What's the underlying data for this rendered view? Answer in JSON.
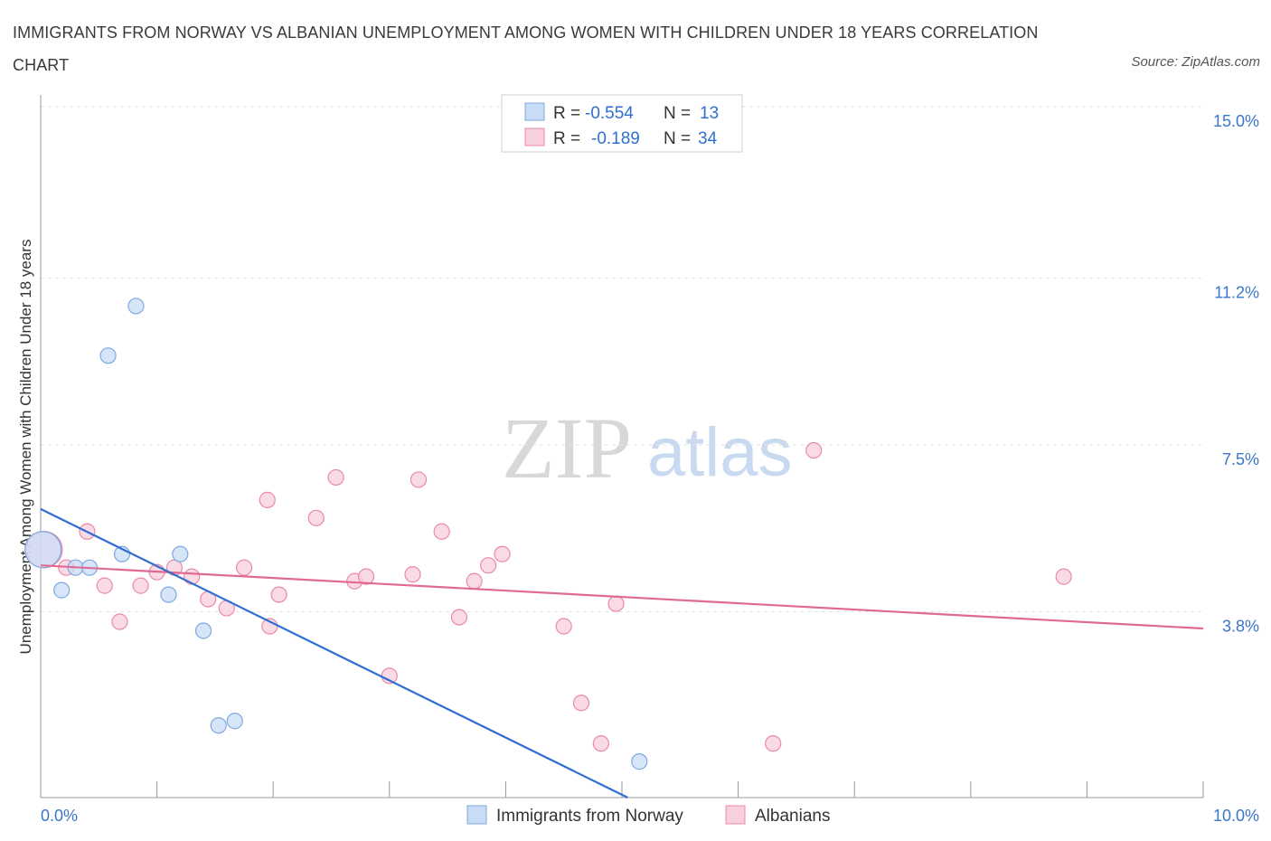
{
  "title": "IMMIGRANTS FROM NORWAY VS ALBANIAN UNEMPLOYMENT AMONG WOMEN WITH CHILDREN UNDER 18 YEARS CORRELATION CHART",
  "source": "Source: ZipAtlas.com",
  "watermark": {
    "zip": "ZIP",
    "atlas": "atlas"
  },
  "colors": {
    "blue_fill": "#c9dcf5",
    "blue_stroke": "#7ea8e0",
    "blue_line": "#2f6fd1",
    "pink_fill": "#f8cfdc",
    "pink_stroke": "#e98aab",
    "pink_line": "#e06a93",
    "grid": "#dddddd",
    "axis_text": "#3b76c8"
  },
  "legend": {
    "r_label": "R =",
    "n_label": "N =",
    "rows": [
      {
        "series": "Immigrants from Norway",
        "r": "-0.554",
        "n": "13"
      },
      {
        "series": "Albanians",
        "r": "-0.189",
        "n": "34"
      }
    ]
  },
  "chart_data": {
    "type": "scatter",
    "title": "IMMIGRANTS FROM NORWAY VS ALBANIAN UNEMPLOYMENT AMONG WOMEN WITH CHILDREN UNDER 18 YEARS CORRELATION CHART",
    "xlabel": "",
    "ylabel": "Unemployment Among Women with Children Under 18 years",
    "xlim": [
      0,
      10
    ],
    "ylim": [
      0,
      15
    ],
    "x_tick_labels": [
      {
        "value": 0,
        "label": "0.0%"
      },
      {
        "value": 10,
        "label": "10.0%"
      }
    ],
    "y_tick_labels": [
      {
        "value": 3.8,
        "label": "3.8%"
      },
      {
        "value": 7.5,
        "label": "7.5%"
      },
      {
        "value": 11.2,
        "label": "11.2%"
      },
      {
        "value": 15.0,
        "label": "15.0%"
      }
    ],
    "series": [
      {
        "name": "Immigrants from Norway",
        "color": "#2f6fd1",
        "points": [
          {
            "x": 0.02,
            "y": 5.5,
            "size": "large"
          },
          {
            "x": 0.18,
            "y": 4.6
          },
          {
            "x": 0.3,
            "y": 5.1
          },
          {
            "x": 0.42,
            "y": 5.1
          },
          {
            "x": 0.58,
            "y": 9.8
          },
          {
            "x": 0.7,
            "y": 5.4
          },
          {
            "x": 0.82,
            "y": 10.9
          },
          {
            "x": 1.1,
            "y": 4.5
          },
          {
            "x": 1.2,
            "y": 5.4
          },
          {
            "x": 1.4,
            "y": 3.7
          },
          {
            "x": 1.53,
            "y": 1.6
          },
          {
            "x": 1.67,
            "y": 1.7
          },
          {
            "x": 5.15,
            "y": 0.8
          }
        ],
        "trendline": {
          "x0": 0.0,
          "y0": 6.4,
          "x1": 5.05,
          "y1": 0.0
        }
      },
      {
        "name": "Albanians",
        "color": "#e06a93",
        "points": [
          {
            "x": 0.03,
            "y": 5.5,
            "size": "large"
          },
          {
            "x": 0.22,
            "y": 5.1
          },
          {
            "x": 0.4,
            "y": 5.9
          },
          {
            "x": 0.55,
            "y": 4.7
          },
          {
            "x": 0.68,
            "y": 3.9
          },
          {
            "x": 0.86,
            "y": 4.7
          },
          {
            "x": 1.0,
            "y": 5.0
          },
          {
            "x": 1.15,
            "y": 5.1
          },
          {
            "x": 1.3,
            "y": 4.9
          },
          {
            "x": 1.44,
            "y": 4.4
          },
          {
            "x": 1.6,
            "y": 4.2
          },
          {
            "x": 1.75,
            "y": 5.1
          },
          {
            "x": 1.97,
            "y": 3.8
          },
          {
            "x": 1.95,
            "y": 6.6
          },
          {
            "x": 2.05,
            "y": 4.5
          },
          {
            "x": 2.37,
            "y": 6.2
          },
          {
            "x": 2.54,
            "y": 7.1
          },
          {
            "x": 2.7,
            "y": 4.8
          },
          {
            "x": 2.8,
            "y": 4.9
          },
          {
            "x": 3.0,
            "y": 2.7
          },
          {
            "x": 3.2,
            "y": 4.95
          },
          {
            "x": 3.25,
            "y": 7.05
          },
          {
            "x": 3.45,
            "y": 5.9
          },
          {
            "x": 3.6,
            "y": 4.0
          },
          {
            "x": 3.73,
            "y": 4.8
          },
          {
            "x": 3.85,
            "y": 5.15
          },
          {
            "x": 3.97,
            "y": 5.4
          },
          {
            "x": 4.5,
            "y": 3.8
          },
          {
            "x": 4.65,
            "y": 2.1
          },
          {
            "x": 4.82,
            "y": 1.2
          },
          {
            "x": 4.95,
            "y": 4.3
          },
          {
            "x": 6.3,
            "y": 1.2
          },
          {
            "x": 6.65,
            "y": 7.7
          },
          {
            "x": 8.8,
            "y": 4.9
          }
        ],
        "trendline": {
          "x0": 0.0,
          "y0": 5.15,
          "x1": 10.0,
          "y1": 3.75
        }
      }
    ],
    "grid": true,
    "legend_position": "top-center"
  }
}
